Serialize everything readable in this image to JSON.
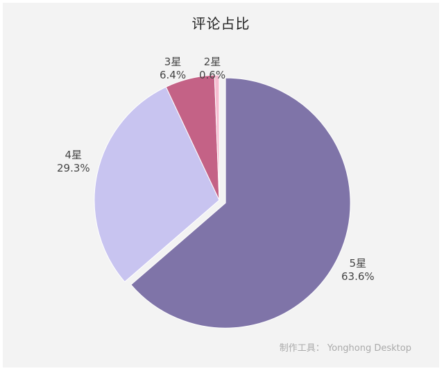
{
  "chart_data": {
    "type": "pie",
    "title": "评论占比",
    "slices": [
      {
        "name": "5星",
        "percent_label": "63.6%",
        "value": 63.6,
        "color": "#7f74a8"
      },
      {
        "name": "4星",
        "percent_label": "29.3%",
        "value": 29.3,
        "color": "#c8c4f0"
      },
      {
        "name": "3星",
        "percent_label": "6.4%",
        "value": 6.4,
        "color": "#c46286"
      },
      {
        "name": "2星",
        "percent_label": "0.6%",
        "value": 0.6,
        "color": "#f6bcd0"
      }
    ],
    "exploded_slice": "5星",
    "start": "top, clockwise"
  },
  "watermark": "制作工具：   Yonghong Desktop"
}
